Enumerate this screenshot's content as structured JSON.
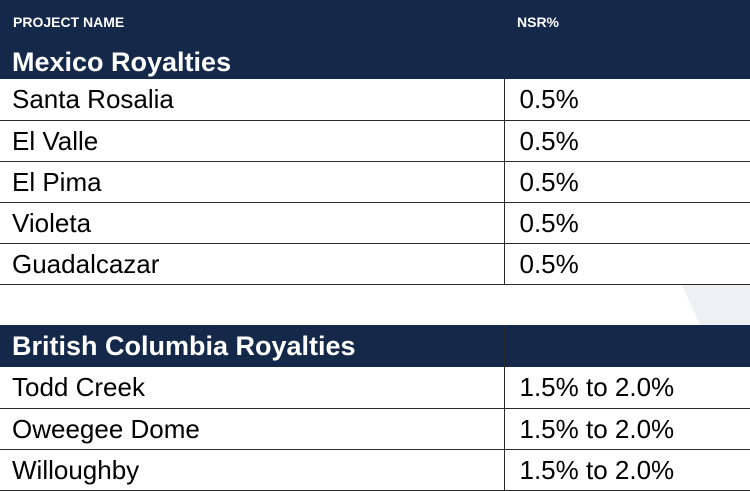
{
  "header": {
    "project_name": "PROJECT NAME",
    "nsr": "NSR%"
  },
  "mexico": {
    "title": "Mexico Royalties",
    "rows": [
      {
        "project": "Santa Rosalia",
        "nsr": "0.5%"
      },
      {
        "project": "El Valle",
        "nsr": "0.5%"
      },
      {
        "project": "El Pima",
        "nsr": "0.5%"
      },
      {
        "project": "Violeta",
        "nsr": "0.5%"
      },
      {
        "project": "Guadalcazar",
        "nsr": "0.5%"
      }
    ]
  },
  "british_columbia": {
    "title": "British Columbia Royalties",
    "rows": [
      {
        "project": "Todd Creek",
        "nsr": "1.5% to 2.0%"
      },
      {
        "project": "Oweegee Dome",
        "nsr": "1.5% to 2.0%"
      },
      {
        "project": "Willoughby",
        "nsr": "1.5% to 2.0%"
      }
    ]
  },
  "colors": {
    "header_navy": "#14284a",
    "watermark_gray": "#eef0f2"
  }
}
